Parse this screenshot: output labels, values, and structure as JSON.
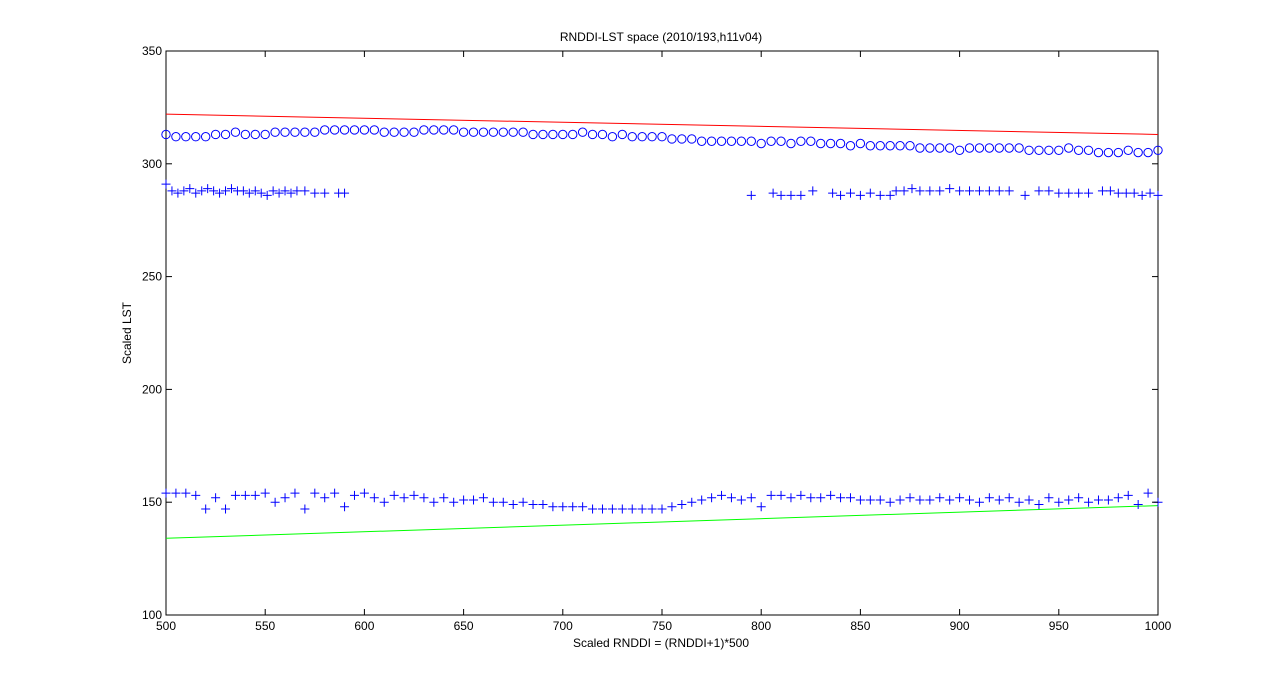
{
  "chart_data": {
    "type": "scatter",
    "title": "RNDDI-LST space (2010/193,h11v04)",
    "xlabel": "Scaled RNDDI = (RNDDI+1)*500",
    "ylabel": "Scaled LST",
    "xlim": [
      500,
      1000
    ],
    "ylim": [
      100,
      350
    ],
    "xticks": [
      500,
      550,
      600,
      650,
      700,
      750,
      800,
      850,
      900,
      950,
      1000
    ],
    "yticks": [
      100,
      150,
      200,
      250,
      300,
      350
    ],
    "grid": false,
    "legend": "none",
    "colors": {
      "points": "#0000ff",
      "dry_edge": "#ff0000",
      "wet_edge": "#00ff00"
    },
    "lines": [
      {
        "role": "dry-edge",
        "color": "#ff0000",
        "x": [
          500,
          1000
        ],
        "y": [
          322,
          313
        ]
      },
      {
        "role": "wet-edge",
        "color": "#00ff00",
        "x": [
          500,
          1000
        ],
        "y": [
          134,
          148.5
        ]
      }
    ],
    "series": [
      {
        "marker": "o",
        "color": "#0000ff",
        "x": [
          500,
          505,
          510,
          515,
          520,
          525,
          530,
          535,
          540,
          545,
          550,
          555,
          560,
          565,
          570,
          575,
          580,
          585,
          590,
          595,
          600,
          605,
          610,
          615,
          620,
          625,
          630,
          635,
          640,
          645,
          650,
          655,
          660,
          665,
          670,
          675,
          680,
          685,
          690,
          695,
          700,
          705,
          710,
          715,
          720,
          725,
          730,
          735,
          740,
          745,
          750,
          755,
          760,
          765,
          770,
          775,
          780,
          785,
          790,
          795,
          800,
          805,
          810,
          815,
          820,
          825,
          830,
          835,
          840,
          845,
          850,
          855,
          860,
          865,
          870,
          875,
          880,
          885,
          890,
          895,
          900,
          905,
          910,
          915,
          920,
          925,
          930,
          935,
          940,
          945,
          950,
          955,
          960,
          965,
          970,
          975,
          980,
          985,
          990,
          995,
          1000
        ],
        "y": [
          313,
          312,
          312,
          312,
          312,
          313,
          313,
          314,
          313,
          313,
          313,
          314,
          314,
          314,
          314,
          314,
          315,
          315,
          315,
          315,
          315,
          315,
          314,
          314,
          314,
          314,
          315,
          315,
          315,
          315,
          314,
          314,
          314,
          314,
          314,
          314,
          314,
          313,
          313,
          313,
          313,
          313,
          314,
          313,
          313,
          312,
          313,
          312,
          312,
          312,
          312,
          311,
          311,
          311,
          310,
          310,
          310,
          310,
          310,
          310,
          309,
          310,
          310,
          309,
          310,
          310,
          309,
          309,
          309,
          308,
          309,
          308,
          308,
          308,
          308,
          308,
          307,
          307,
          307,
          307,
          306,
          307,
          307,
          307,
          307,
          307,
          307,
          306,
          306,
          306,
          306,
          307,
          306,
          306,
          305,
          305,
          305,
          306,
          305,
          305,
          306
        ]
      },
      {
        "marker": "+",
        "color": "#0000ff",
        "x": [
          500,
          503,
          506,
          509,
          512,
          515,
          518,
          521,
          524,
          527,
          530,
          533,
          536,
          539,
          542,
          545,
          548,
          551,
          554,
          557,
          560,
          563,
          566,
          570,
          575,
          580,
          587,
          590,
          795,
          806,
          810,
          815,
          820,
          826,
          836,
          840,
          845,
          850,
          855,
          860,
          865,
          868,
          872,
          876,
          880,
          885,
          890,
          895,
          900,
          905,
          910,
          915,
          920,
          925,
          933,
          940,
          945,
          950,
          955,
          960,
          965,
          972,
          976,
          980,
          984,
          988,
          992,
          996,
          1000
        ],
        "y": [
          291,
          288,
          287,
          288,
          289,
          287,
          288,
          289,
          288,
          287,
          288,
          289,
          288,
          288,
          287,
          288,
          287,
          286,
          288,
          287,
          288,
          287,
          288,
          288,
          287,
          287,
          287,
          287,
          286,
          287,
          286,
          286,
          286,
          288,
          287,
          286,
          287,
          286,
          287,
          286,
          286,
          288,
          288,
          289,
          288,
          288,
          288,
          289,
          288,
          288,
          288,
          288,
          288,
          288,
          286,
          288,
          288,
          287,
          287,
          287,
          287,
          288,
          288,
          287,
          287,
          287,
          286,
          287,
          286
        ]
      },
      {
        "marker": "+",
        "color": "#0000ff",
        "x": [
          500,
          505,
          510,
          515,
          520,
          525,
          530,
          535,
          540,
          545,
          550,
          555,
          560,
          565,
          570,
          575,
          580,
          585,
          590,
          595,
          600,
          605,
          610,
          615,
          620,
          625,
          630,
          635,
          640,
          645,
          650,
          655,
          660,
          665,
          670,
          675,
          680,
          685,
          690,
          695,
          700,
          705,
          710,
          715,
          720,
          725,
          730,
          735,
          740,
          745,
          750,
          755,
          760,
          765,
          770,
          775,
          780,
          785,
          790,
          795,
          800,
          805,
          810,
          815,
          820,
          825,
          830,
          835,
          840,
          845,
          850,
          855,
          860,
          865,
          870,
          875,
          880,
          885,
          890,
          895,
          900,
          905,
          910,
          915,
          920,
          925,
          930,
          935,
          940,
          945,
          950,
          955,
          960,
          965,
          970,
          975,
          980,
          985,
          990,
          995,
          1000
        ],
        "y": [
          154,
          154,
          154,
          153,
          147,
          152,
          147,
          153,
          153,
          153,
          154,
          150,
          152,
          154,
          147,
          154,
          152,
          154,
          148,
          153,
          154,
          152,
          150,
          153,
          152,
          153,
          152,
          150,
          152,
          150,
          151,
          151,
          152,
          150,
          150,
          149,
          150,
          149,
          149,
          148,
          148,
          148,
          148,
          147,
          147,
          147,
          147,
          147,
          147,
          147,
          147,
          148,
          149,
          150,
          151,
          152,
          153,
          152,
          151,
          152,
          148,
          153,
          153,
          152,
          153,
          152,
          152,
          153,
          152,
          152,
          151,
          151,
          151,
          150,
          151,
          152,
          151,
          151,
          152,
          151,
          152,
          151,
          150,
          152,
          151,
          152,
          150,
          151,
          149,
          152,
          150,
          151,
          152,
          150,
          151,
          151,
          152,
          153,
          149,
          154,
          150
        ]
      }
    ]
  }
}
